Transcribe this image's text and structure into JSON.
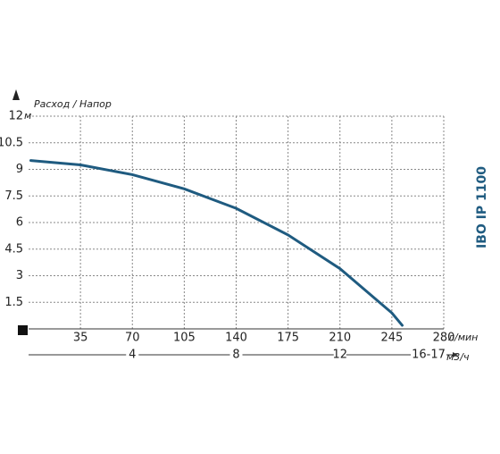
{
  "chart_data": {
    "type": "line",
    "title": "IBO IP 1100",
    "ylabel": "Расход / Напор",
    "y_unit": "м",
    "x_unit": "л/мин",
    "x2_unit": "м3/ч",
    "x": [
      1.5,
      35,
      70,
      105,
      140,
      175,
      210,
      245,
      252
    ],
    "series": [
      {
        "color": "#1f5b80",
        "values": [
          9.5,
          9.25,
          8.7,
          7.9,
          6.8,
          5.3,
          3.4,
          0.9,
          0.2
        ]
      }
    ],
    "xlim": [
      0,
      280
    ],
    "xticks": [
      35,
      70,
      105,
      140,
      175,
      210,
      245,
      280
    ],
    "ylim": [
      0,
      12
    ],
    "yticks": [
      1.5,
      3,
      4.5,
      6,
      7.5,
      9,
      10.5,
      12
    ],
    "x2lim": [
      0,
      16
    ],
    "x2ticks": [
      4,
      8,
      12,
      {
        "value": 16,
        "label": "16-17"
      }
    ],
    "grid": true
  }
}
